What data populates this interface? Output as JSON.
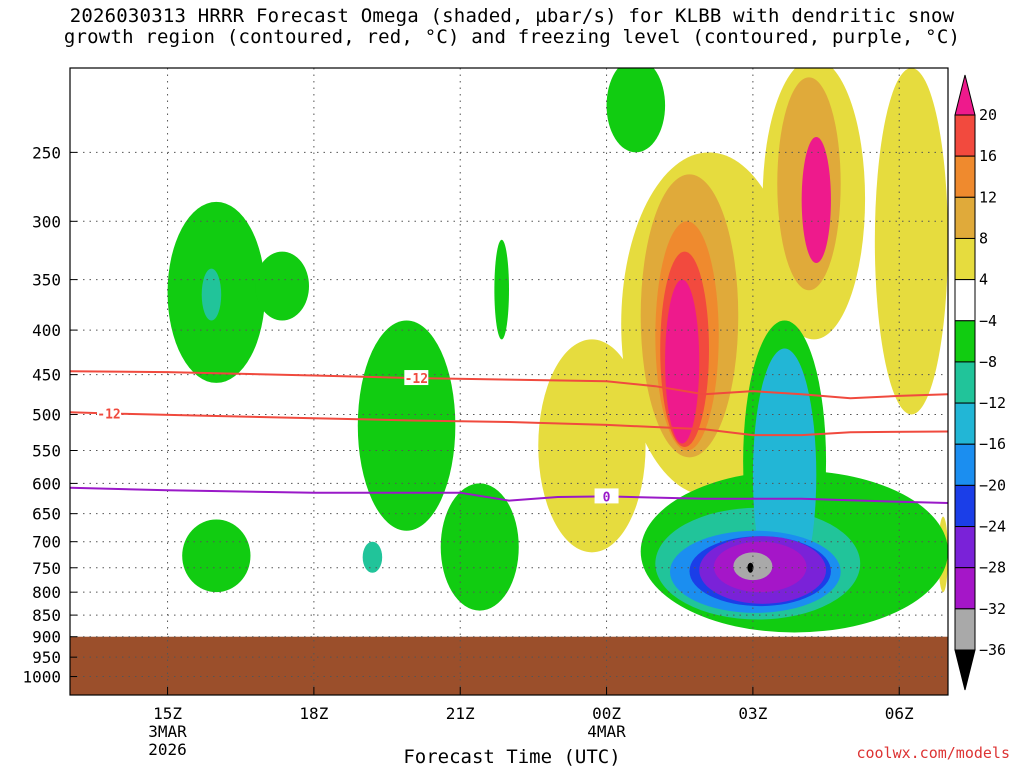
{
  "title_line1": "2026030313 HRRR Forecast Omega (shaded, µbar/s) for KLBB with dendritic snow",
  "title_line2": "growth region (contoured, red, °C) and freezing level (contoured, purple, °C)",
  "credit": "coolwx.com/models",
  "colors": {
    "ground": "#9b4f2b",
    "dendritic_contour": "#f04a3e",
    "freezing_contour": "#9a19c8",
    "grid": "#555555"
  },
  "chart_data": {
    "type": "heatmap",
    "xlabel": "Forecast Time (UTC)",
    "ylabel": "",
    "x_ticks": [
      {
        "label": "15Z",
        "sub1": "3MAR",
        "sub2": "2026"
      },
      {
        "label": "18Z",
        "sub1": "",
        "sub2": ""
      },
      {
        "label": "21Z",
        "sub1": "",
        "sub2": ""
      },
      {
        "label": "00Z",
        "sub1": "4MAR",
        "sub2": ""
      },
      {
        "label": "03Z",
        "sub1": "",
        "sub2": ""
      },
      {
        "label": "06Z",
        "sub1": "",
        "sub2": ""
      }
    ],
    "xlim_hours": [
      13.0,
      31.0
    ],
    "x_tick_hours": [
      15,
      18,
      21,
      24,
      27,
      30
    ],
    "y_axis": "pressure (hPa), log scale",
    "ylim": [
      1050,
      200
    ],
    "y_ticks": [
      250,
      300,
      350,
      400,
      450,
      500,
      550,
      600,
      650,
      700,
      750,
      800,
      850,
      900,
      950,
      1000
    ],
    "ground_top_pressure": 900,
    "colorbar": {
      "unit": "µbar/s",
      "levels": [
        "20",
        "16",
        "12",
        "8",
        "4",
        "−4",
        "−8",
        "−12",
        "−16",
        "−20",
        "−24",
        "−28",
        "−32",
        "−36"
      ],
      "bins": [
        {
          "range": ">20",
          "color": "#ee1a8c"
        },
        {
          "range": "16 to 20",
          "color": "#f24a3e"
        },
        {
          "range": "12 to 16",
          "color": "#ef8a2e"
        },
        {
          "range": "8 to 12",
          "color": "#e0aa3a"
        },
        {
          "range": "4 to 8",
          "color": "#e6dc3e"
        },
        {
          "range": "-4 to 4",
          "color": "#ffffff"
        },
        {
          "range": "-8 to -4",
          "color": "#11cc11"
        },
        {
          "range": "-12 to -8",
          "color": "#21c49a"
        },
        {
          "range": "-16 to -12",
          "color": "#22b6d6"
        },
        {
          "range": "-20 to -16",
          "color": "#1b8ef0"
        },
        {
          "range": "-24 to -20",
          "color": "#1b3ee8"
        },
        {
          "range": "-28 to -24",
          "color": "#7a22d8"
        },
        {
          "range": "-32 to -28",
          "color": "#a516c8"
        },
        {
          "range": "-36 to -32",
          "color": "#a9a9a9"
        },
        {
          "range": "<-36",
          "color": "#000000"
        }
      ]
    },
    "dendritic_contours": [
      {
        "label": "-12",
        "label_hour": 13.8,
        "points": [
          [
            13,
            497
          ],
          [
            14,
            499
          ],
          [
            16,
            502
          ],
          [
            18,
            505
          ],
          [
            20,
            508
          ],
          [
            22,
            510
          ],
          [
            24,
            514
          ],
          [
            26,
            520
          ],
          [
            27,
            528
          ],
          [
            28,
            528
          ],
          [
            29,
            524
          ],
          [
            31,
            523
          ]
        ]
      },
      {
        "label": "-12",
        "label_hour": 20.1,
        "points": [
          [
            13,
            446
          ],
          [
            15,
            447
          ],
          [
            18,
            451
          ],
          [
            20,
            454
          ],
          [
            22,
            456
          ],
          [
            24,
            458
          ],
          [
            25,
            464
          ],
          [
            26,
            474
          ],
          [
            27,
            470
          ],
          [
            28,
            474
          ],
          [
            29,
            479
          ],
          [
            30,
            476
          ],
          [
            31,
            474
          ]
        ]
      }
    ],
    "freezing_contour": {
      "label": "0",
      "label_hour": 24.0,
      "points": [
        [
          13,
          607
        ],
        [
          15,
          611
        ],
        [
          18,
          615
        ],
        [
          21,
          615
        ],
        [
          22,
          628
        ],
        [
          23,
          622
        ],
        [
          24,
          621
        ],
        [
          26,
          625
        ],
        [
          28,
          625
        ],
        [
          30,
          630
        ],
        [
          31,
          632
        ]
      ]
    },
    "omega_regions": [
      {
        "value": -6,
        "hour": [
          15.0,
          17.0
        ],
        "p": [
          285,
          460
        ]
      },
      {
        "value": -10,
        "hour": [
          15.7,
          16.1
        ],
        "p": [
          340,
          390
        ]
      },
      {
        "value": -6,
        "hour": [
          16.8,
          17.9
        ],
        "p": [
          325,
          390
        ]
      },
      {
        "value": -6,
        "hour": [
          18.9,
          20.9
        ],
        "p": [
          390,
          680
        ]
      },
      {
        "value": -6,
        "hour": [
          21.7,
          22.0
        ],
        "p": [
          315,
          410
        ]
      },
      {
        "value": -6,
        "hour": [
          15.3,
          16.7
        ],
        "p": [
          660,
          800
        ]
      },
      {
        "value": -6,
        "hour": [
          20.6,
          22.2
        ],
        "p": [
          600,
          840
        ]
      },
      {
        "value": -10,
        "hour": [
          19.0,
          19.4
        ],
        "p": [
          700,
          760
        ]
      },
      {
        "value": -6,
        "hour": [
          24.0,
          25.2
        ],
        "p": [
          195,
          250
        ]
      },
      {
        "value": 5,
        "hour": [
          22.6,
          24.8
        ],
        "p": [
          410,
          720
        ]
      },
      {
        "value": 5,
        "hour": [
          24.3,
          27.9
        ],
        "p": [
          250,
          620
        ]
      },
      {
        "value": 9,
        "hour": [
          24.7,
          26.7
        ],
        "p": [
          265,
          560
        ]
      },
      {
        "value": 13,
        "hour": [
          25.0,
          26.3
        ],
        "p": [
          300,
          550
        ]
      },
      {
        "value": 17,
        "hour": [
          25.1,
          26.1
        ],
        "p": [
          325,
          545
        ]
      },
      {
        "value": 22,
        "hour": [
          25.2,
          25.9
        ],
        "p": [
          350,
          540
        ]
      },
      {
        "value": 5,
        "hour": [
          27.2,
          29.3
        ],
        "p": [
          195,
          410
        ]
      },
      {
        "value": 10,
        "hour": [
          27.5,
          28.8
        ],
        "p": [
          205,
          360
        ]
      },
      {
        "value": 22,
        "hour": [
          28.0,
          28.6
        ],
        "p": [
          240,
          335
        ]
      },
      {
        "value": 5,
        "hour": [
          29.5,
          31.0
        ],
        "p": [
          200,
          500
        ]
      },
      {
        "value": 5,
        "hour": [
          30.8,
          31.0
        ],
        "p": [
          655,
          800
        ]
      },
      {
        "value": -6,
        "hour": [
          24.7,
          31.0
        ],
        "p": [
          580,
          890
        ]
      },
      {
        "value": -6,
        "hour": [
          26.8,
          28.5
        ],
        "p": [
          390,
          820
        ]
      },
      {
        "value": -10,
        "hour": [
          25.0,
          29.2
        ],
        "p": [
          640,
          860
        ]
      },
      {
        "value": -14,
        "hour": [
          27.0,
          28.3
        ],
        "p": [
          420,
          820
        ]
      },
      {
        "value": -18,
        "hour": [
          25.3,
          28.8
        ],
        "p": [
          680,
          845
        ]
      },
      {
        "value": -22,
        "hour": [
          25.7,
          28.6
        ],
        "p": [
          690,
          830
        ]
      },
      {
        "value": -26,
        "hour": [
          25.9,
          28.5
        ],
        "p": [
          690,
          825
        ]
      },
      {
        "value": -30,
        "hour": [
          26.2,
          28.1
        ],
        "p": [
          700,
          800
        ]
      },
      {
        "value": -34,
        "hour": [
          26.6,
          27.4
        ],
        "p": [
          720,
          775
        ]
      },
      {
        "value": -38,
        "hour": [
          26.9,
          27.0
        ],
        "p": [
          740,
          760
        ]
      }
    ]
  }
}
